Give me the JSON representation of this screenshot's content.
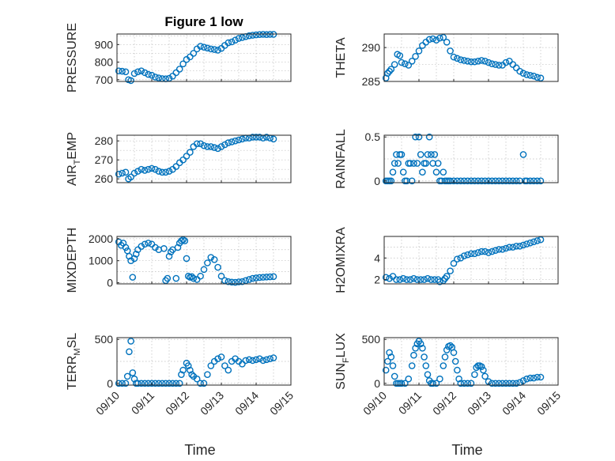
{
  "figure_title": "Figure 1 low",
  "chart_data": [
    {
      "id": "pressure",
      "type": "scatter",
      "title": "Figure 1 low",
      "ylabel": "PRESSURE",
      "ylabel_sub": "",
      "xlabel": "",
      "ylim": [
        690,
        960
      ],
      "yticks": [
        700,
        800,
        900
      ],
      "ytick_labels": [
        "700",
        "800",
        "900"
      ],
      "xlim": [
        0,
        5
      ],
      "xtick_labels": [],
      "x": [
        0.05,
        0.15,
        0.25,
        0.33,
        0.4,
        0.5,
        0.6,
        0.7,
        0.8,
        0.9,
        1.0,
        1.1,
        1.2,
        1.3,
        1.4,
        1.5,
        1.6,
        1.7,
        1.8,
        1.9,
        2.0,
        2.1,
        2.2,
        2.3,
        2.4,
        2.5,
        2.6,
        2.7,
        2.8,
        2.9,
        3.0,
        3.1,
        3.2,
        3.3,
        3.4,
        3.5,
        3.6,
        3.7,
        3.8,
        3.9,
        4.0,
        4.1,
        4.2,
        4.3,
        4.4,
        4.5
      ],
      "y": [
        750,
        748,
        745,
        700,
        695,
        735,
        745,
        750,
        740,
        730,
        725,
        715,
        710,
        706,
        705,
        708,
        720,
        740,
        760,
        790,
        815,
        830,
        850,
        875,
        890,
        885,
        880,
        875,
        872,
        868,
        878,
        895,
        910,
        915,
        925,
        935,
        940,
        945,
        950,
        953,
        955,
        957,
        958,
        957,
        958,
        958
      ]
    },
    {
      "id": "theta",
      "type": "scatter",
      "ylabel": "THETA",
      "ylabel_sub": "",
      "xlabel": "",
      "ylim": [
        285,
        292
      ],
      "yticks": [
        285,
        290
      ],
      "ytick_labels": [
        "285",
        "290"
      ],
      "xlim": [
        0,
        5
      ],
      "xtick_labels": [],
      "x": [
        0.05,
        0.1,
        0.15,
        0.2,
        0.3,
        0.38,
        0.45,
        0.5,
        0.6,
        0.7,
        0.8,
        0.9,
        1.0,
        1.1,
        1.2,
        1.3,
        1.4,
        1.5,
        1.6,
        1.7,
        1.8,
        1.9,
        2.0,
        2.1,
        2.2,
        2.3,
        2.4,
        2.5,
        2.6,
        2.7,
        2.8,
        2.9,
        3.0,
        3.1,
        3.2,
        3.3,
        3.4,
        3.5,
        3.6,
        3.7,
        3.8,
        3.9,
        4.0,
        4.1,
        4.2,
        4.3,
        4.4,
        4.5
      ],
      "y": [
        285.5,
        286.2,
        286.5,
        286.8,
        287.5,
        289.0,
        288.8,
        287.8,
        287.6,
        287.4,
        288.0,
        288.7,
        289.5,
        290.3,
        290.8,
        291.2,
        291.3,
        291.1,
        291.4,
        291.5,
        290.8,
        289.5,
        288.6,
        288.4,
        288.2,
        288.1,
        288.0,
        287.9,
        287.9,
        288.0,
        288.1,
        288.0,
        287.8,
        287.6,
        287.5,
        287.4,
        287.4,
        287.8,
        288.0,
        287.5,
        287.0,
        286.5,
        286.2,
        286.0,
        285.9,
        285.8,
        285.6,
        285.5
      ]
    },
    {
      "id": "air_temp",
      "type": "scatter",
      "ylabel": "AIR",
      "ylabel_sub": "T",
      "ylabel_after": "EMP",
      "xlabel": "",
      "ylim": [
        258,
        283
      ],
      "yticks": [
        260,
        270,
        280
      ],
      "ytick_labels": [
        "260",
        "270",
        "280"
      ],
      "xlim": [
        0,
        5
      ],
      "xtick_labels": [],
      "x": [
        0.05,
        0.15,
        0.25,
        0.33,
        0.4,
        0.5,
        0.6,
        0.7,
        0.8,
        0.9,
        1.0,
        1.1,
        1.2,
        1.3,
        1.4,
        1.5,
        1.6,
        1.7,
        1.8,
        1.9,
        2.0,
        2.1,
        2.2,
        2.3,
        2.4,
        2.5,
        2.6,
        2.7,
        2.8,
        2.9,
        3.0,
        3.1,
        3.2,
        3.3,
        3.4,
        3.5,
        3.6,
        3.7,
        3.8,
        3.9,
        4.0,
        4.1,
        4.2,
        4.3,
        4.4,
        4.5
      ],
      "y": [
        262.5,
        263,
        263.5,
        260,
        261,
        263,
        264,
        265,
        264.5,
        265,
        265.5,
        265,
        264,
        263.5,
        263.5,
        264,
        265,
        266.5,
        268.5,
        270,
        272,
        274,
        277,
        278.5,
        278.5,
        277.5,
        277,
        277,
        276.5,
        276,
        277,
        278,
        279,
        279.5,
        280,
        280.5,
        281,
        281.5,
        281.5,
        282,
        282,
        282,
        281.5,
        282,
        281.5,
        281
      ]
    },
    {
      "id": "rainfall",
      "type": "scatter",
      "ylabel": "RAINFALL",
      "ylabel_sub": "",
      "xlabel": "",
      "ylim": [
        -0.02,
        0.52
      ],
      "yticks": [
        0,
        0.5
      ],
      "ytick_labels": [
        "0",
        "0.5"
      ],
      "xlim": [
        0,
        5
      ],
      "xtick_labels": [],
      "x": [
        0.05,
        0.1,
        0.15,
        0.2,
        0.25,
        0.3,
        0.35,
        0.4,
        0.45,
        0.5,
        0.55,
        0.6,
        0.65,
        0.7,
        0.75,
        0.8,
        0.85,
        0.9,
        0.95,
        1.0,
        1.05,
        1.1,
        1.15,
        1.2,
        1.25,
        1.3,
        1.35,
        1.4,
        1.45,
        1.5,
        1.55,
        1.6,
        1.65,
        1.7,
        1.75,
        1.8,
        1.85,
        1.9,
        2.0,
        2.1,
        2.2,
        2.3,
        2.4,
        2.5,
        2.6,
        2.7,
        2.8,
        2.9,
        3.0,
        3.1,
        3.2,
        3.3,
        3.4,
        3.5,
        3.6,
        3.7,
        3.8,
        3.9,
        4.0,
        4.05,
        4.1,
        4.2,
        4.3,
        4.4,
        4.5
      ],
      "y": [
        0,
        0,
        0,
        0,
        0.1,
        0.2,
        0.3,
        0.2,
        0.3,
        0.3,
        0.1,
        0,
        0,
        0.2,
        0.2,
        0,
        0.2,
        0.5,
        0.2,
        0.5,
        0.3,
        0.1,
        0.2,
        0.2,
        0.3,
        0.5,
        0.3,
        0.2,
        0.3,
        0.1,
        0.2,
        0,
        0,
        0.1,
        0,
        0,
        0,
        0,
        0,
        0,
        0,
        0,
        0,
        0,
        0,
        0,
        0,
        0,
        0,
        0,
        0,
        0,
        0,
        0,
        0,
        0,
        0,
        0,
        0.3,
        0,
        0,
        0,
        0,
        0,
        0
      ]
    },
    {
      "id": "mixdepth",
      "type": "scatter",
      "ylabel": "MIXDEPTH",
      "ylabel_sub": "",
      "xlabel": "",
      "ylim": [
        -50,
        2100
      ],
      "yticks": [
        0,
        1000,
        2000
      ],
      "ytick_labels": [
        "0",
        "1000",
        "2000"
      ],
      "xlim": [
        0,
        5
      ],
      "xtick_labels": [],
      "x": [
        0.05,
        0.12,
        0.18,
        0.25,
        0.3,
        0.35,
        0.4,
        0.45,
        0.5,
        0.55,
        0.6,
        0.7,
        0.8,
        0.9,
        1.0,
        1.1,
        1.2,
        1.35,
        1.4,
        1.45,
        1.5,
        1.55,
        1.6,
        1.7,
        1.75,
        1.8,
        1.85,
        1.9,
        1.95,
        2.0,
        2.05,
        2.1,
        2.15,
        2.2,
        2.3,
        2.4,
        2.5,
        2.6,
        2.7,
        2.8,
        2.9,
        3.0,
        3.1,
        3.2,
        3.3,
        3.4,
        3.5,
        3.6,
        3.7,
        3.8,
        3.9,
        4.0,
        4.1,
        4.2,
        4.3,
        4.4,
        4.5
      ],
      "y": [
        1850,
        1700,
        1800,
        1600,
        1450,
        1200,
        1000,
        250,
        1100,
        1300,
        1500,
        1650,
        1750,
        1800,
        1750,
        1600,
        1500,
        1550,
        100,
        200,
        1200,
        1400,
        1500,
        200,
        1600,
        1800,
        1900,
        1950,
        1900,
        1100,
        300,
        250,
        280,
        200,
        150,
        300,
        600,
        900,
        1150,
        1050,
        700,
        300,
        100,
        50,
        30,
        20,
        40,
        50,
        100,
        150,
        200,
        220,
        240,
        250,
        260,
        270,
        280
      ]
    },
    {
      "id": "h2omixra",
      "type": "scatter",
      "ylabel": "H2OMIXRA",
      "ylabel_sub": "",
      "xlabel": "",
      "ylim": [
        1.6,
        6.0
      ],
      "yticks": [
        2,
        4
      ],
      "ytick_labels": [
        "2",
        "4"
      ],
      "xlim": [
        0,
        5
      ],
      "xtick_labels": [],
      "x": [
        0.05,
        0.15,
        0.25,
        0.35,
        0.45,
        0.55,
        0.65,
        0.75,
        0.85,
        0.95,
        1.05,
        1.15,
        1.25,
        1.35,
        1.45,
        1.55,
        1.6,
        1.7,
        1.75,
        1.8,
        1.9,
        2.0,
        2.1,
        2.2,
        2.3,
        2.4,
        2.5,
        2.6,
        2.7,
        2.8,
        2.9,
        3.0,
        3.1,
        3.2,
        3.3,
        3.4,
        3.5,
        3.6,
        3.7,
        3.8,
        3.9,
        4.0,
        4.1,
        4.2,
        4.3,
        4.4,
        4.5
      ],
      "y": [
        2.2,
        2.1,
        2.3,
        2.0,
        2.0,
        2.1,
        2.0,
        2.0,
        2.1,
        2.0,
        2.0,
        2.0,
        2.1,
        2.0,
        2.0,
        2.0,
        1.8,
        1.9,
        2.1,
        2.3,
        2.8,
        3.5,
        3.9,
        4.0,
        4.2,
        4.3,
        4.4,
        4.4,
        4.5,
        4.6,
        4.6,
        4.5,
        4.6,
        4.7,
        4.8,
        4.8,
        4.9,
        5.0,
        5.0,
        5.1,
        5.1,
        5.2,
        5.3,
        5.4,
        5.5,
        5.6,
        5.7
      ]
    },
    {
      "id": "terr_msl",
      "type": "scatter",
      "ylabel": "TERR",
      "ylabel_sub": "M",
      "ylabel_after": "SL",
      "xlabel": "Time",
      "ylim": [
        -20,
        520
      ],
      "yticks": [
        0,
        500
      ],
      "ytick_labels": [
        "0",
        "500"
      ],
      "xlim": [
        0,
        5
      ],
      "xtick_labels": [
        "09/10",
        "09/11",
        "09/12",
        "09/13",
        "09/14",
        "09/15"
      ],
      "x": [
        0.05,
        0.15,
        0.25,
        0.3,
        0.35,
        0.4,
        0.45,
        0.5,
        0.55,
        0.6,
        0.7,
        0.8,
        0.9,
        1.0,
        1.1,
        1.2,
        1.3,
        1.4,
        1.5,
        1.6,
        1.7,
        1.8,
        1.85,
        1.9,
        2.0,
        2.05,
        2.1,
        2.15,
        2.2,
        2.3,
        2.4,
        2.5,
        2.6,
        2.7,
        2.8,
        2.9,
        3.0,
        3.1,
        3.2,
        3.3,
        3.4,
        3.5,
        3.6,
        3.7,
        3.8,
        3.9,
        4.0,
        4.1,
        4.2,
        4.3,
        4.4,
        4.5
      ],
      "y": [
        0,
        0,
        0,
        80,
        360,
        480,
        120,
        50,
        0,
        0,
        0,
        0,
        0,
        0,
        0,
        0,
        0,
        0,
        0,
        0,
        0,
        0,
        100,
        150,
        230,
        200,
        150,
        100,
        80,
        50,
        0,
        0,
        100,
        200,
        250,
        280,
        300,
        200,
        150,
        250,
        280,
        250,
        220,
        260,
        270,
        260,
        270,
        280,
        260,
        270,
        280,
        290
      ]
    },
    {
      "id": "sun_flux",
      "type": "scatter",
      "ylabel": "SUN",
      "ylabel_sub": "F",
      "ylabel_after": "LUX",
      "xlabel": "Time",
      "ylim": [
        -20,
        520
      ],
      "yticks": [
        0,
        500
      ],
      "ytick_labels": [
        "0",
        "500"
      ],
      "xlim": [
        0,
        5
      ],
      "xtick_labels": [
        "09/10",
        "09/11",
        "09/12",
        "09/13",
        "09/14",
        "09/15"
      ],
      "x": [
        0.05,
        0.1,
        0.15,
        0.2,
        0.25,
        0.3,
        0.35,
        0.4,
        0.45,
        0.5,
        0.6,
        0.7,
        0.8,
        0.85,
        0.9,
        0.95,
        1.0,
        1.05,
        1.1,
        1.15,
        1.2,
        1.25,
        1.3,
        1.35,
        1.4,
        1.5,
        1.6,
        1.7,
        1.75,
        1.8,
        1.85,
        1.9,
        1.95,
        2.0,
        2.05,
        2.1,
        2.15,
        2.2,
        2.3,
        2.4,
        2.5,
        2.6,
        2.65,
        2.7,
        2.75,
        2.8,
        2.85,
        2.9,
        3.0,
        3.1,
        3.2,
        3.3,
        3.4,
        3.5,
        3.6,
        3.7,
        3.8,
        3.9,
        4.0,
        4.1,
        4.2,
        4.3,
        4.4,
        4.5
      ],
      "y": [
        150,
        250,
        350,
        300,
        200,
        80,
        0,
        0,
        0,
        0,
        0,
        50,
        200,
        320,
        400,
        450,
        480,
        450,
        400,
        300,
        200,
        100,
        30,
        0,
        0,
        0,
        50,
        200,
        300,
        380,
        420,
        430,
        410,
        350,
        250,
        150,
        50,
        0,
        0,
        0,
        0,
        100,
        180,
        200,
        200,
        190,
        150,
        80,
        20,
        0,
        0,
        0,
        0,
        0,
        0,
        0,
        0,
        10,
        30,
        50,
        60,
        60,
        70,
        70
      ]
    }
  ]
}
